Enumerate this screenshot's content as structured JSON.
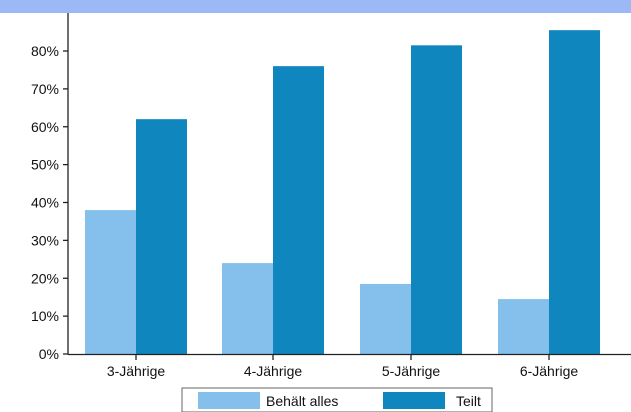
{
  "colors": {
    "top_band": "#9cb8f5",
    "axis": "#222222",
    "background": "#ffffff"
  },
  "chart_data": {
    "type": "bar",
    "categories": [
      "3-Jährige",
      "4-Jährige",
      "5-Jährige",
      "6-Jährige"
    ],
    "series": [
      {
        "name": "Behält alles",
        "color": "#85bfec",
        "values": [
          38,
          24,
          18.5,
          14.5
        ]
      },
      {
        "name": "Teilt",
        "color": "#0f87be",
        "values": [
          62,
          76,
          81.5,
          85.5
        ]
      }
    ],
    "ylim": [
      0,
      88
    ],
    "yticks": [
      0,
      10,
      20,
      30,
      40,
      50,
      60,
      70,
      80
    ],
    "ytick_labels": [
      "0%",
      "10%",
      "20%",
      "30%",
      "40%",
      "50%",
      "60%",
      "70%",
      "80%"
    ],
    "grid": false,
    "legend_position": "bottom-center",
    "title": "",
    "xlabel": "",
    "ylabel": ""
  }
}
